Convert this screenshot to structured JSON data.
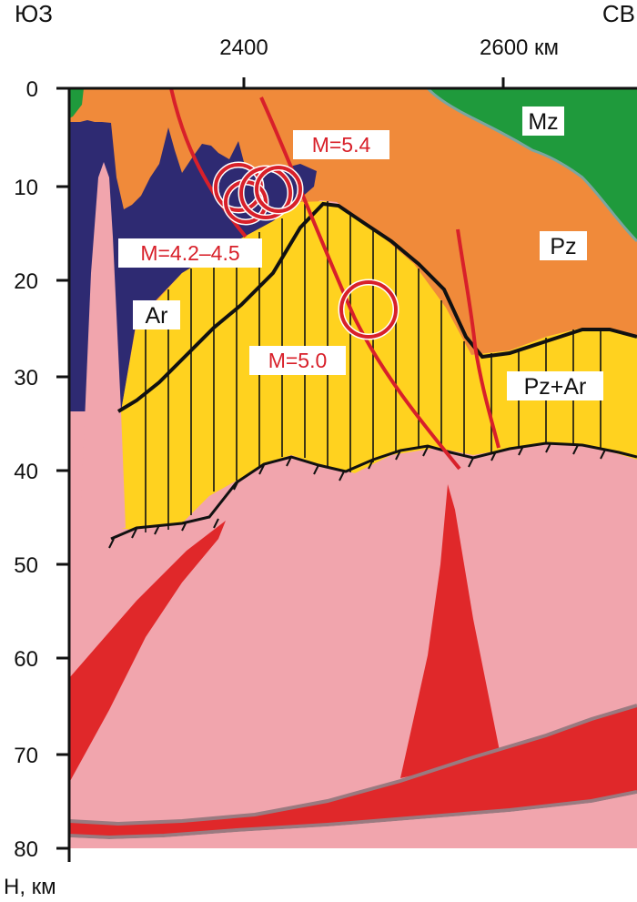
{
  "orientation": {
    "left": "ЮЗ",
    "right": "СВ"
  },
  "axes": {
    "depth_label": "H, км",
    "depth_ticks": [
      "0",
      "10",
      "20",
      "30",
      "40",
      "50",
      "60",
      "70",
      "80"
    ],
    "distance_ticks": [
      "2400",
      "2600 км"
    ]
  },
  "units": {
    "Mz": "Mz",
    "Pz": "Pz",
    "Ar": "Ar",
    "PzAr": "Pz+Ar"
  },
  "earthquakes": {
    "m42": "M=4.2–4.5",
    "m54": "M=5.4",
    "m50": "M=5.0"
  },
  "colors": {
    "mz": "#1f9a3c",
    "pz": "#f08a3a",
    "ar": "#2e2a72",
    "pzar": "#ffd21f",
    "mantle": "#f1a5ad",
    "anomaly": "#e0282a",
    "fault": "#d8202a"
  }
}
